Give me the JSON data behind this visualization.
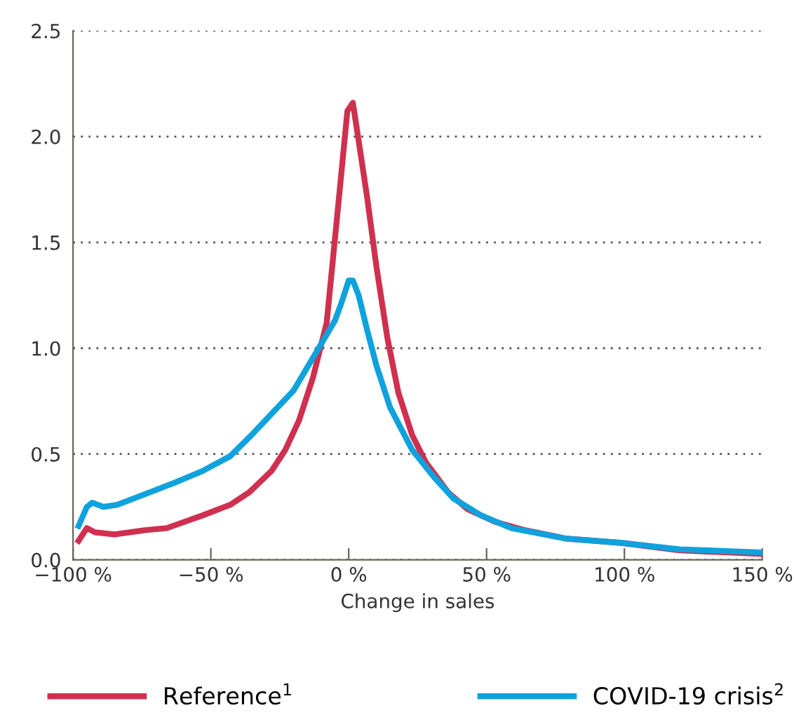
{
  "chart_data": {
    "type": "line",
    "xlabel": "Change in sales",
    "xlim": [
      -100,
      150
    ],
    "ylim": [
      0,
      2.5
    ],
    "xticks": [
      {
        "value": -100,
        "label": "−100 %"
      },
      {
        "value": -50,
        "label": "−50 %"
      },
      {
        "value": 0,
        "label": "0 %"
      },
      {
        "value": 50,
        "label": "50 %"
      },
      {
        "value": 100,
        "label": "100 %"
      },
      {
        "value": 150,
        "label": "150 %"
      }
    ],
    "yticks": [
      {
        "value": 0,
        "label": "0.0"
      },
      {
        "value": 0.5,
        "label": "0.5"
      },
      {
        "value": 1,
        "label": "1.0"
      },
      {
        "value": 1.5,
        "label": "1.5"
      },
      {
        "value": 2,
        "label": "2.0"
      },
      {
        "value": 2.5,
        "label": "2.5"
      }
    ],
    "grid": "y",
    "legend": "bottom",
    "line_style": "solid",
    "marker": "none",
    "series": [
      {
        "name": "Reference$^{1}$",
        "color": "#d0304f",
        "x": [
          -98,
          -95,
          -92,
          -85,
          -74,
          -66,
          -53,
          -43,
          -36,
          -28,
          -23,
          -18,
          -13,
          -8,
          -4,
          -2.5,
          -0.5,
          1.5,
          3.6,
          6.6,
          10,
          14,
          18,
          23,
          28,
          36,
          43,
          53,
          64,
          79,
          99,
          120,
          150
        ],
        "values": [
          0.09,
          0.15,
          0.13,
          0.12,
          0.14,
          0.15,
          0.21,
          0.26,
          0.32,
          0.42,
          0.52,
          0.66,
          0.86,
          1.12,
          1.65,
          1.85,
          2.12,
          2.16,
          1.98,
          1.72,
          1.39,
          1.05,
          0.79,
          0.59,
          0.46,
          0.32,
          0.24,
          0.18,
          0.14,
          0.1,
          0.08,
          0.045,
          0.028
        ]
      },
      {
        "name": "COVID-19 crisis$^{2}$",
        "color": "#0fa2dd",
        "x": [
          -98,
          -95,
          -93,
          -89,
          -84,
          -74,
          -64,
          -53,
          -43,
          -36,
          -28,
          -20,
          -15,
          -10,
          -5,
          -2.5,
          0,
          1.5,
          3.6,
          6.6,
          10,
          15,
          23,
          31,
          38,
          48,
          59,
          79,
          99,
          120,
          150
        ],
        "values": [
          0.16,
          0.25,
          0.27,
          0.25,
          0.26,
          0.31,
          0.36,
          0.42,
          0.49,
          0.58,
          0.69,
          0.8,
          0.91,
          1.02,
          1.13,
          1.22,
          1.32,
          1.32,
          1.25,
          1.09,
          0.92,
          0.72,
          0.52,
          0.39,
          0.29,
          0.21,
          0.15,
          0.1,
          0.08,
          0.05,
          0.035
        ]
      }
    ]
  }
}
